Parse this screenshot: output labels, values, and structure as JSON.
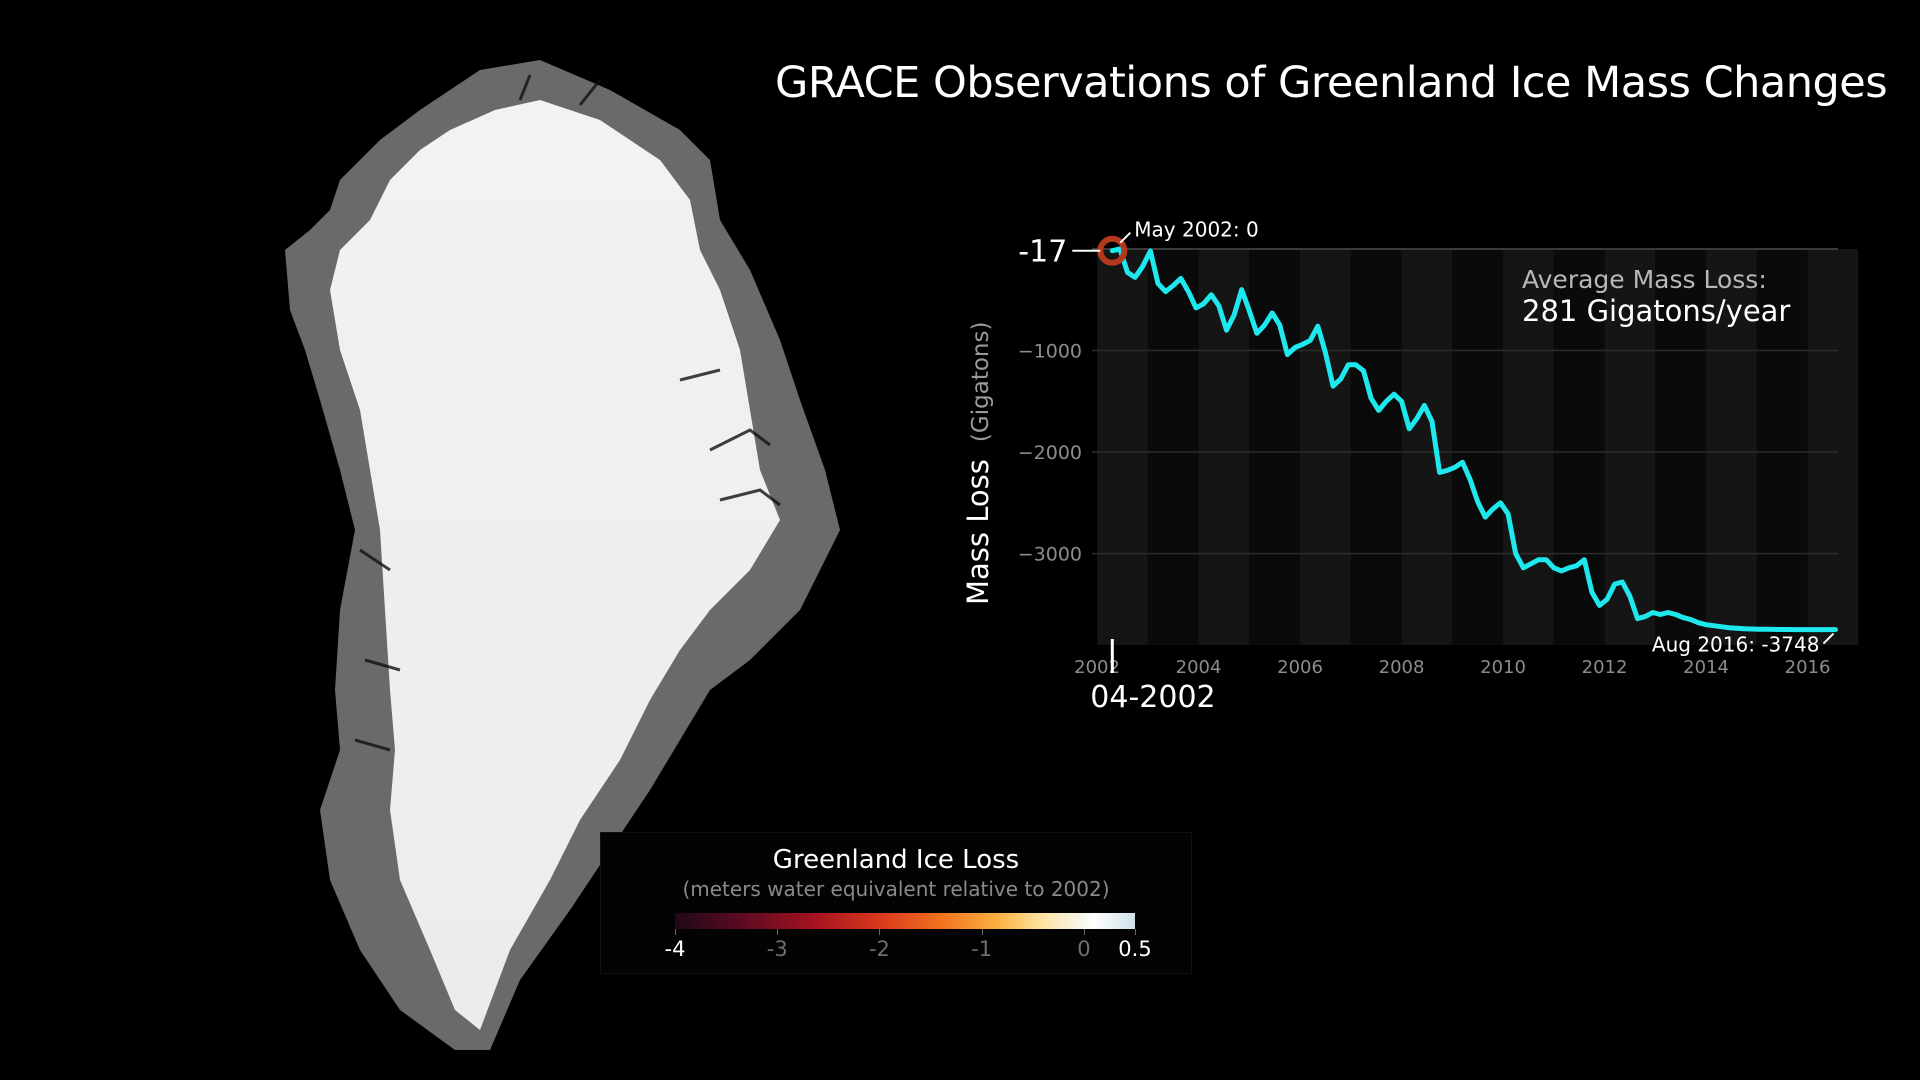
{
  "title": "GRACE Observations of Greenland Ice Mass Changes",
  "colors": {
    "background": "#000000",
    "line": "#1ee8ee",
    "marker": "#b3381c"
  },
  "chart_data": {
    "type": "line",
    "title": "GRACE Observations of Greenland Ice Mass Changes",
    "ylabel": "Mass Loss",
    "ylabel_unit": "(Gigatons)",
    "ylim": [
      -3900,
      0
    ],
    "xlim": [
      2001.9,
      2016.6
    ],
    "yticks": [
      -1000,
      -2000,
      -3000
    ],
    "ytick_labels": [
      "−1000",
      "−2000",
      "−3000"
    ],
    "xticks": [
      2002,
      2004,
      2006,
      2008,
      2010,
      2012,
      2014,
      2016
    ],
    "xtick_labels": [
      "2002",
      "2004",
      "2006",
      "2008",
      "2010",
      "2012",
      "2014",
      "2016"
    ],
    "grid": true,
    "current_value_label": "-17",
    "current_date_label": "04-2002",
    "annotation_start": "May 2002: 0",
    "annotation_end": "Aug 2016: -3748",
    "summary_label": "Average Mass Loss:",
    "summary_value": "281 Gigatons/year",
    "series": [
      {
        "x": [
          2002.3,
          2002.45,
          2002.6,
          2002.75,
          2002.9,
          2003.05,
          2003.2,
          2003.35,
          2003.5,
          2003.65,
          2003.8,
          2003.95,
          2004.1,
          2004.25,
          2004.4,
          2004.55,
          2004.7,
          2004.85,
          2005.0,
          2005.15,
          2005.3,
          2005.45,
          2005.6,
          2005.75,
          2005.9,
          2006.05,
          2006.2,
          2006.35,
          2006.5,
          2006.65,
          2006.8,
          2006.95,
          2007.1,
          2007.25,
          2007.4,
          2007.55,
          2007.7,
          2007.85,
          2008.0,
          2008.15,
          2008.3,
          2008.45,
          2008.6,
          2008.75,
          2008.9,
          2009.05,
          2009.2,
          2009.35,
          2009.5,
          2009.65,
          2009.8,
          2009.95,
          2010.1,
          2010.25,
          2010.4,
          2010.55,
          2010.7,
          2010.85,
          2011.0,
          2011.15,
          2011.3,
          2011.45,
          2011.6,
          2011.75,
          2011.9,
          2012.05,
          2012.2,
          2012.35,
          2012.5,
          2012.65,
          2012.8,
          2012.95,
          2013.1,
          2013.25,
          2013.4,
          2013.55,
          2013.7,
          2013.85,
          2014.0,
          2014.15,
          2014.3,
          2014.45,
          2014.6,
          2014.75,
          2014.9,
          2015.05,
          2015.2,
          2015.35,
          2015.5,
          2015.65,
          2015.8,
          2015.95,
          2016.1,
          2016.25,
          2016.4,
          2016.55
        ],
        "y": [
          -17,
          0,
          -230,
          -280,
          -170,
          -20,
          -340,
          -420,
          -360,
          -290,
          -420,
          -580,
          -540,
          -450,
          -560,
          -800,
          -650,
          -400,
          -610,
          -830,
          -750,
          -630,
          -750,
          -1040,
          -970,
          -940,
          -900,
          -760,
          -1020,
          -1350,
          -1280,
          -1140,
          -1140,
          -1200,
          -1470,
          -1590,
          -1500,
          -1430,
          -1500,
          -1770,
          -1670,
          -1540,
          -1700,
          -2200,
          -2180,
          -2150,
          -2100,
          -2270,
          -2490,
          -2640,
          -2560,
          -2500,
          -2610,
          -3000,
          -3140,
          -3100,
          -3060,
          -3060,
          -3140,
          -3170,
          -3140,
          -3120,
          -3060,
          -3380,
          -3510,
          -3450,
          -3300,
          -3280,
          -3420,
          -3640,
          -3620,
          -3580,
          -3600,
          -3580,
          -3600,
          -3630,
          -3650,
          -3680,
          -3700,
          -3710,
          -3720,
          -3730,
          -3735,
          -3740,
          -3742,
          -3744,
          -3745,
          -3746,
          -3747,
          -3747,
          -3748,
          -3748,
          -3748,
          -3748,
          -3748,
          -3748
        ]
      }
    ]
  },
  "legend": {
    "title": "Greenland Ice Loss",
    "subtitle": "(meters water equivalent relative to 2002)",
    "tick_labels": [
      "-4",
      "-3",
      "-2",
      "-1",
      "0",
      "0.5"
    ]
  }
}
